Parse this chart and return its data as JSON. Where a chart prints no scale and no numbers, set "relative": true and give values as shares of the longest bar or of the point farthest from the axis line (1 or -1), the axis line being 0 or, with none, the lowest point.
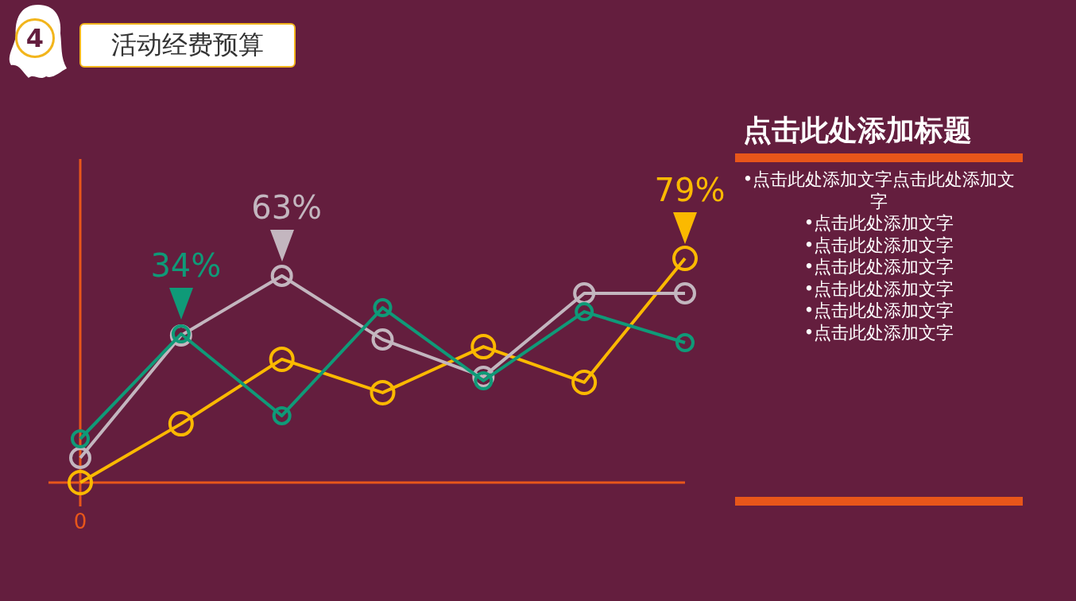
{
  "chart_data": [
    {
      "type": "line",
      "title": "活动经费预算",
      "relative": true,
      "marker": "circle",
      "legend": false,
      "categories": [
        null,
        null,
        null,
        null,
        null,
        null,
        null
      ],
      "annotations": [
        "4",
        "0",
        {
          "text": "34%",
          "y": 0.663
        },
        {
          "text": "63%",
          "y": 0.922
        },
        "79%"
      ],
      "series": [
        {
          "color": "#0f9a78",
          "values": [
            0.195,
            0.663,
            0.298,
            0.78,
            0.454,
            0.762,
            0.624
          ]
        },
        {
          "color": "#c3b6bf",
          "values": [
            0.11,
            0.656,
            0.922,
            0.638,
            0.472,
            0.844,
            0.844
          ]
        },
        {
          "color": "#fbb900",
          "values": [
            0,
            0.262,
            0.55,
            0.401,
            0.606,
            0.447,
            1
          ]
        }
      ]
    },
    {
      "type": "other",
      "title": "点击此处添加标题",
      "annotations": [
        "•点击此处添加文字点击此处添加文字",
        "•点击此处添加文字",
        "•点击此处添加文字",
        "•点击此处添加文字",
        "•点击此处添加文字",
        "•点击此处添加文字",
        "•点击此处添加文字"
      ]
    }
  ]
}
